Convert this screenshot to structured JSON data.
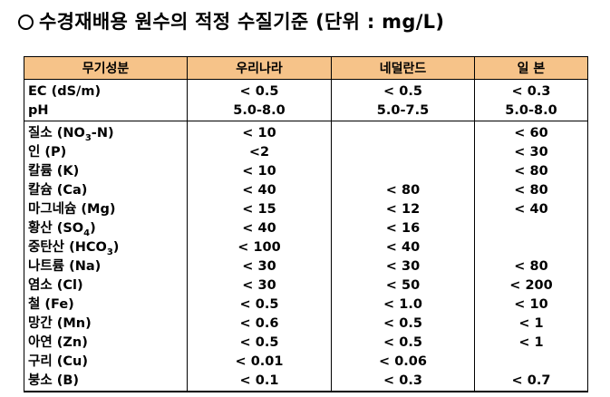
{
  "title": "수경재배용 원수의 적정 수질기준 (단위 : mg/L)",
  "headers": [
    "무기성분",
    "우리나라",
    "네덜란드",
    "일  본"
  ],
  "rows": [
    {
      "name": "EC (dS/m)",
      "sub": "",
      "suffix": "",
      "korea": "< 0.5",
      "netherlands": "< 0.5",
      "japan": "< 0.3"
    },
    {
      "name": "pH",
      "sub": "",
      "suffix": "",
      "korea": "5.0-8.0",
      "netherlands": "5.0-7.5",
      "japan": "5.0-8.0"
    },
    {
      "name": "질소 (NO",
      "sub": "3",
      "suffix": "-N)",
      "korea": "< 10",
      "netherlands": "",
      "japan": "< 60"
    },
    {
      "name": "인 (P)",
      "sub": "",
      "suffix": "",
      "korea": "<2",
      "netherlands": "",
      "japan": "< 30"
    },
    {
      "name": "칼륨 (K)",
      "sub": "",
      "suffix": "",
      "korea": "< 10",
      "netherlands": "",
      "japan": "< 80"
    },
    {
      "name": "칼슘 (Ca)",
      "sub": "",
      "suffix": "",
      "korea": "< 40",
      "netherlands": "< 80",
      "japan": "< 80"
    },
    {
      "name": "마그네슘 (Mg)",
      "sub": "",
      "suffix": "",
      "korea": "< 15",
      "netherlands": "< 12",
      "japan": "< 40"
    },
    {
      "name": "황산 (SO",
      "sub": "4",
      "suffix": ")",
      "korea": "< 40",
      "netherlands": "< 16",
      "japan": ""
    },
    {
      "name": "중탄산 (HCO",
      "sub": "3",
      "suffix": ")",
      "korea": "< 100",
      "netherlands": "< 40",
      "japan": ""
    },
    {
      "name": "나트륨 (Na)",
      "sub": "",
      "suffix": "",
      "korea": "< 30",
      "netherlands": "< 30",
      "japan": "< 80"
    },
    {
      "name": "염소 (Cl)",
      "sub": "",
      "suffix": "",
      "korea": "< 30",
      "netherlands": "< 50",
      "japan": "< 200"
    },
    {
      "name": "철 (Fe)",
      "sub": "",
      "suffix": "",
      "korea": "< 0.5",
      "netherlands": "< 1.0",
      "japan": "< 10"
    },
    {
      "name": "망간 (Mn)",
      "sub": "",
      "suffix": "",
      "korea": "< 0.6",
      "netherlands": "< 0.5",
      "japan": "< 1"
    },
    {
      "name": "아연 (Zn)",
      "sub": "",
      "suffix": "",
      "korea": "< 0.5",
      "netherlands": "< 0.5",
      "japan": "< 1"
    },
    {
      "name": "구리 (Cu)",
      "sub": "",
      "suffix": "",
      "korea": "< 0.01",
      "netherlands": "< 0.06",
      "japan": ""
    },
    {
      "name": "붕소 (B)",
      "sub": "",
      "suffix": "",
      "korea": "< 0.1",
      "netherlands": "< 0.3",
      "japan": "< 0.7"
    }
  ]
}
